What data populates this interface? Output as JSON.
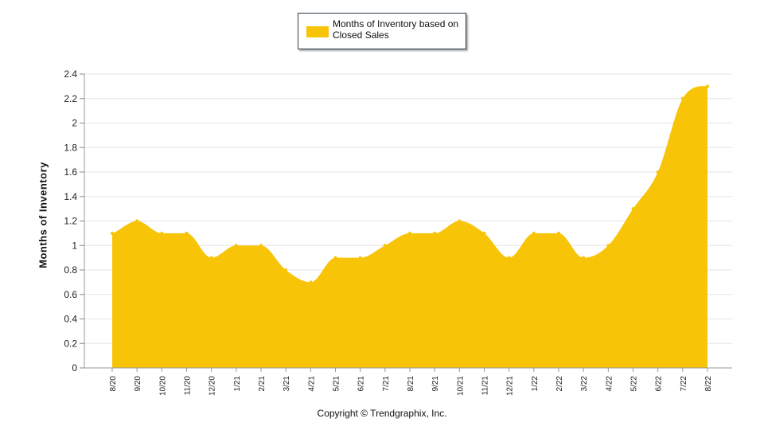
{
  "chart_data": {
    "type": "area",
    "title": "",
    "xlabel": "",
    "ylabel": "Months of Inventory",
    "ylim": [
      0,
      2.4
    ],
    "yticks": [
      "0",
      "0.2",
      "0.4",
      "0.6",
      "0.8",
      "1",
      "1.2",
      "1.4",
      "1.6",
      "1.8",
      "2",
      "2.2",
      "2.4"
    ],
    "categories": [
      "8/20",
      "9/20",
      "10/20",
      "11/20",
      "12/20",
      "1/21",
      "2/21",
      "3/21",
      "4/21",
      "5/21",
      "6/21",
      "7/21",
      "8/21",
      "9/21",
      "10/21",
      "11/21",
      "12/21",
      "1/22",
      "2/22",
      "3/22",
      "4/22",
      "5/22",
      "6/22",
      "7/22",
      "8/22"
    ],
    "series": [
      {
        "name": "Months of Inventory based on Closed Sales",
        "color": "#F7C408",
        "values": [
          1.1,
          1.2,
          1.1,
          1.1,
          0.9,
          1.0,
          1.0,
          0.8,
          0.7,
          0.9,
          0.9,
          1.0,
          1.1,
          1.1,
          1.2,
          1.1,
          0.9,
          1.1,
          1.1,
          0.9,
          1.0,
          1.3,
          1.6,
          2.2,
          2.3
        ]
      }
    ],
    "legend": "top-center",
    "grid": true
  },
  "legend_label": "Months of Inventory based on Closed Sales",
  "copyright": "Copyright © Trendgraphix, Inc."
}
